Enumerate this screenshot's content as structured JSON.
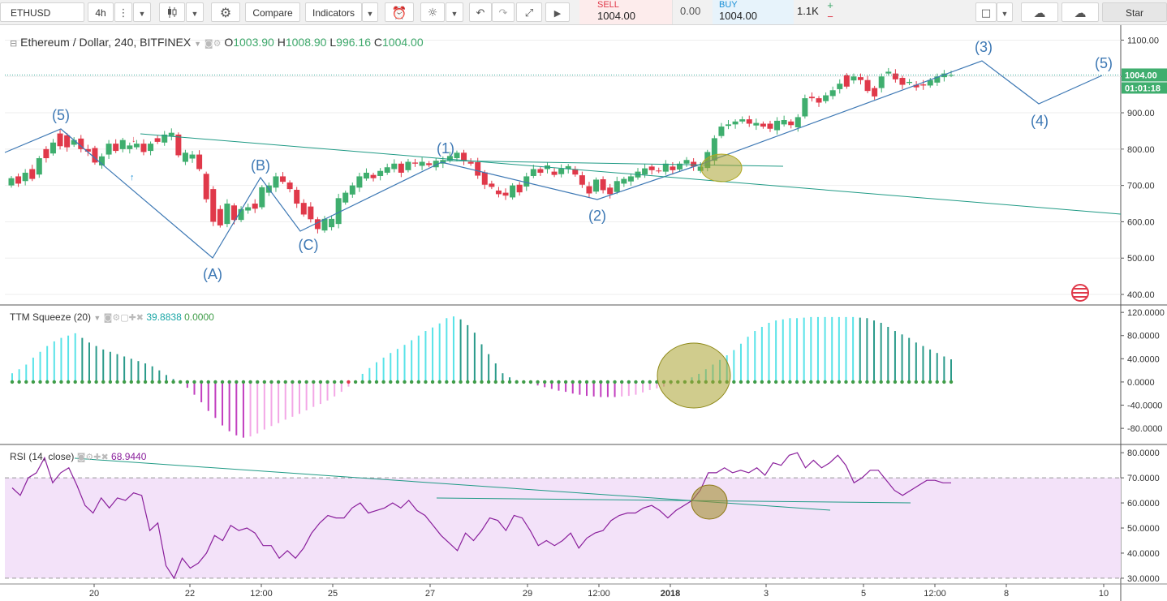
{
  "toolbar": {
    "symbol": "ETHUSD",
    "interval": "4h",
    "compare_label": "Compare",
    "indicators_label": "Indicators",
    "sell_label": "SELL",
    "sell_price": "1004.00",
    "spread": "0.00",
    "buy_label": "BUY",
    "buy_price": "1004.00",
    "quantity": "1.1K",
    "plus": "+",
    "minus": "−",
    "star_label": "Star",
    "icons": [
      "chevron-down-icon",
      "candlestick-icon",
      "gear-icon",
      "alarm-icon",
      "lightbulb-icon",
      "undo-icon",
      "redo-icon",
      "fullscreen-icon",
      "play-icon",
      "square-icon",
      "cloud-download-icon",
      "cloud-upload-icon"
    ]
  },
  "colors": {
    "up": "#3fae6e",
    "down": "#e0394a",
    "wave": "#3d78b4",
    "trend": "#1f9a85",
    "ellipse": "#a9a230",
    "rsi": "#8a1f9c",
    "rsi_band": "#f3e2f9",
    "sq_light": "#58e3e8",
    "sq_dark": "#2a9a8a",
    "sq_pink": "#f3a7e6",
    "sq_magenta": "#c23fbf",
    "dot_green": "#3f9c48"
  },
  "main": {
    "title": "Ethereum / Dollar, 240, BITFINEX",
    "o_label": "O",
    "o": "1003.90",
    "h_label": "H",
    "h": "1008.90",
    "l_label": "L",
    "l": "996.16",
    "c_label": "C",
    "c": "1004.00",
    "last_price": "1004.00",
    "countdown": "01:01:18"
  },
  "ttm": {
    "title": "TTM Squeeze (20)",
    "v1": "39.8838",
    "v2": "0.0000"
  },
  "rsi": {
    "title": "RSI (14, close)",
    "value": "68.9440"
  },
  "chart_data": [
    {
      "type": "candlestick",
      "title": "Ethereum / Dollar, 240, BITFINEX",
      "ylim": [
        380,
        1130
      ],
      "yticks": [
        "1100.00",
        "1000.00",
        "900.00",
        "800.00",
        "700.00",
        "600.00",
        "500.00",
        "400.00"
      ],
      "xticks": [
        "20",
        "22",
        "12:00",
        "25",
        "27",
        "29",
        "12:00",
        "2018",
        "3",
        "5",
        "12:00",
        "8",
        "10"
      ],
      "candles": [
        [
          700,
          720
        ],
        [
          725,
          705
        ],
        [
          712,
          735
        ],
        [
          745,
          718
        ],
        [
          730,
          775
        ],
        [
          800,
          775
        ],
        [
          788,
          818
        ],
        [
          843,
          808
        ],
        [
          838,
          805
        ],
        [
          812,
          825
        ],
        [
          829,
          800
        ],
        [
          800,
          793
        ],
        [
          803,
          763
        ],
        [
          755,
          780
        ],
        [
          785,
          815
        ],
        [
          815,
          795
        ],
        [
          800,
          825
        ],
        [
          800,
          810
        ],
        [
          805,
          815
        ],
        [
          815,
          792
        ],
        [
          795,
          815
        ],
        [
          830,
          820
        ],
        [
          818,
          840
        ],
        [
          836,
          845
        ],
        [
          840,
          783
        ],
        [
          765,
          790
        ],
        [
          774,
          785
        ],
        [
          785,
          745
        ],
        [
          732,
          662
        ],
        [
          690,
          600
        ],
        [
          635,
          590
        ],
        [
          594,
          650
        ],
        [
          645,
          605
        ],
        [
          605,
          635
        ],
        [
          631,
          640
        ],
        [
          650,
          636
        ],
        [
          640,
          695
        ],
        [
          680,
          700
        ],
        [
          694,
          725
        ],
        [
          725,
          710
        ],
        [
          708,
          690
        ],
        [
          688,
          650
        ],
        [
          652,
          620
        ],
        [
          642,
          607
        ],
        [
          607,
          580
        ],
        [
          576,
          608
        ],
        [
          585,
          608
        ],
        [
          594,
          665
        ],
        [
          653,
          680
        ],
        [
          675,
          700
        ],
        [
          694,
          725
        ],
        [
          719,
          735
        ],
        [
          729,
          720
        ],
        [
          726,
          740
        ],
        [
          735,
          750
        ],
        [
          745,
          760
        ],
        [
          760,
          735
        ],
        [
          742,
          765
        ],
        [
          763,
          760
        ],
        [
          754,
          765
        ],
        [
          761,
          756
        ],
        [
          750,
          768
        ],
        [
          760,
          770
        ],
        [
          769,
          781
        ],
        [
          775,
          790
        ],
        [
          790,
          768
        ],
        [
          765,
          760
        ],
        [
          764,
          727
        ],
        [
          736,
          702
        ],
        [
          705,
          696
        ],
        [
          686,
          676
        ],
        [
          680,
          672
        ],
        [
          667,
          700
        ],
        [
          702,
          681
        ],
        [
          697,
          725
        ],
        [
          726,
          745
        ],
        [
          745,
          735
        ],
        [
          745,
          755
        ],
        [
          738,
          729
        ],
        [
          731,
          746
        ],
        [
          745,
          753
        ],
        [
          745,
          730
        ],
        [
          728,
          702
        ],
        [
          698,
          678
        ],
        [
          683,
          716
        ],
        [
          717,
          687
        ],
        [
          694,
          676
        ],
        [
          682,
          712
        ],
        [
          705,
          718
        ],
        [
          711,
          725
        ],
        [
          722,
          738
        ],
        [
          730,
          747
        ],
        [
          752,
          742
        ],
        [
          741,
          740
        ],
        [
          738,
          760
        ],
        [
          752,
          742
        ],
        [
          744,
          760
        ],
        [
          760,
          770
        ],
        [
          765,
          752
        ],
        [
          740,
          752
        ],
        [
          748,
          792
        ],
        [
          768,
          830
        ],
        [
          836,
          862
        ],
        [
          864,
          868
        ],
        [
          868,
          876
        ],
        [
          876,
          882
        ],
        [
          882,
          870
        ],
        [
          865,
          872
        ],
        [
          870,
          862
        ],
        [
          870,
          856
        ],
        [
          852,
          878
        ],
        [
          868,
          880
        ],
        [
          876,
          866
        ],
        [
          860,
          888
        ],
        [
          890,
          940
        ],
        [
          944,
          940
        ],
        [
          940,
          928
        ],
        [
          932,
          948
        ],
        [
          946,
          962
        ],
        [
          965,
          980
        ],
        [
          1003,
          972
        ],
        [
          989,
          1000
        ],
        [
          998,
          990
        ],
        [
          990,
          960
        ],
        [
          968,
          945
        ],
        [
          968,
          1000
        ],
        [
          1008,
          1013
        ],
        [
          1008,
          992
        ],
        [
          996,
          977
        ],
        [
          982,
          985
        ],
        [
          977,
          970
        ],
        [
          978,
          975
        ],
        [
          975,
          990
        ],
        [
          983,
          1000
        ],
        [
          998,
          1008
        ],
        [
          1004,
          1004
        ]
      ],
      "wave_labels": [
        "(5)",
        "(A)",
        "(B)",
        "(C)",
        "(1)",
        "(2)",
        "(3)",
        "(4)",
        "(5)"
      ]
    },
    {
      "type": "bar",
      "title": "TTM Squeeze (20)",
      "ylim": [
        -105,
        130
      ],
      "yticks": [
        "120.0000",
        "80.0000",
        "40.0000",
        "0.0000",
        "-40.0000",
        "-80.0000"
      ],
      "values": [
        15,
        22,
        30,
        42,
        52,
        62,
        70,
        76,
        80,
        84,
        76,
        68,
        62,
        56,
        52,
        48,
        44,
        40,
        36,
        32,
        27,
        20,
        12,
        5,
        -2,
        -10,
        -22,
        -35,
        -50,
        -62,
        -75,
        -85,
        -92,
        -96,
        -94,
        -89,
        -82,
        -76,
        -71,
        -65,
        -60,
        -55,
        -49,
        -43,
        -38,
        -32,
        -25,
        -17,
        -8,
        2,
        14,
        24,
        34,
        42,
        50,
        57,
        64,
        72,
        80,
        88,
        94,
        101,
        110,
        113,
        108,
        98,
        85,
        65,
        48,
        32,
        15,
        8,
        3,
        0,
        -3,
        -6,
        -9,
        -12,
        -15,
        -17,
        -20,
        -22,
        -24,
        -25,
        -26,
        -26,
        -26,
        -25,
        -24,
        -22,
        -18,
        -14,
        -11,
        -8,
        -5,
        -2,
        2,
        8,
        14,
        22,
        30,
        38,
        46,
        55,
        66,
        78,
        88,
        95,
        102,
        106,
        108,
        110,
        110,
        111,
        112,
        112,
        112,
        112,
        112,
        112,
        112,
        111,
        110,
        106,
        102,
        95,
        88,
        82,
        76,
        68,
        62,
        56,
        50,
        44,
        39
      ]
    },
    {
      "type": "line",
      "title": "RSI (14, close)",
      "ylim": [
        29,
        82
      ],
      "yticks": [
        "80.0000",
        "70.0000",
        "60.0000",
        "50.0000",
        "40.0000",
        "30.0000"
      ],
      "band": [
        30,
        70
      ],
      "values": [
        66,
        63,
        70,
        72,
        78,
        68,
        72,
        74,
        67,
        59,
        56,
        62,
        58,
        62,
        61,
        64,
        63,
        49,
        52,
        35,
        30,
        38,
        34,
        36,
        40,
        47,
        45,
        51,
        49,
        50,
        48,
        43,
        43,
        38,
        41,
        38,
        42,
        48,
        52,
        55,
        54,
        54,
        58,
        60,
        56,
        57,
        58,
        60,
        58,
        61,
        57,
        55,
        51,
        47,
        44,
        41,
        48,
        45,
        49,
        54,
        53,
        49,
        55,
        54,
        49,
        43,
        45,
        43,
        45,
        48,
        42,
        46,
        48,
        49,
        53,
        55,
        56,
        56,
        58,
        59,
        57,
        54,
        57,
        59,
        61,
        65,
        72,
        72,
        74,
        72,
        73,
        72,
        74,
        71,
        76,
        75,
        79,
        80,
        74,
        77,
        74,
        76,
        79,
        75,
        68,
        70,
        73,
        73,
        69,
        65,
        63,
        65,
        67,
        69,
        69,
        68,
        68
      ]
    }
  ]
}
